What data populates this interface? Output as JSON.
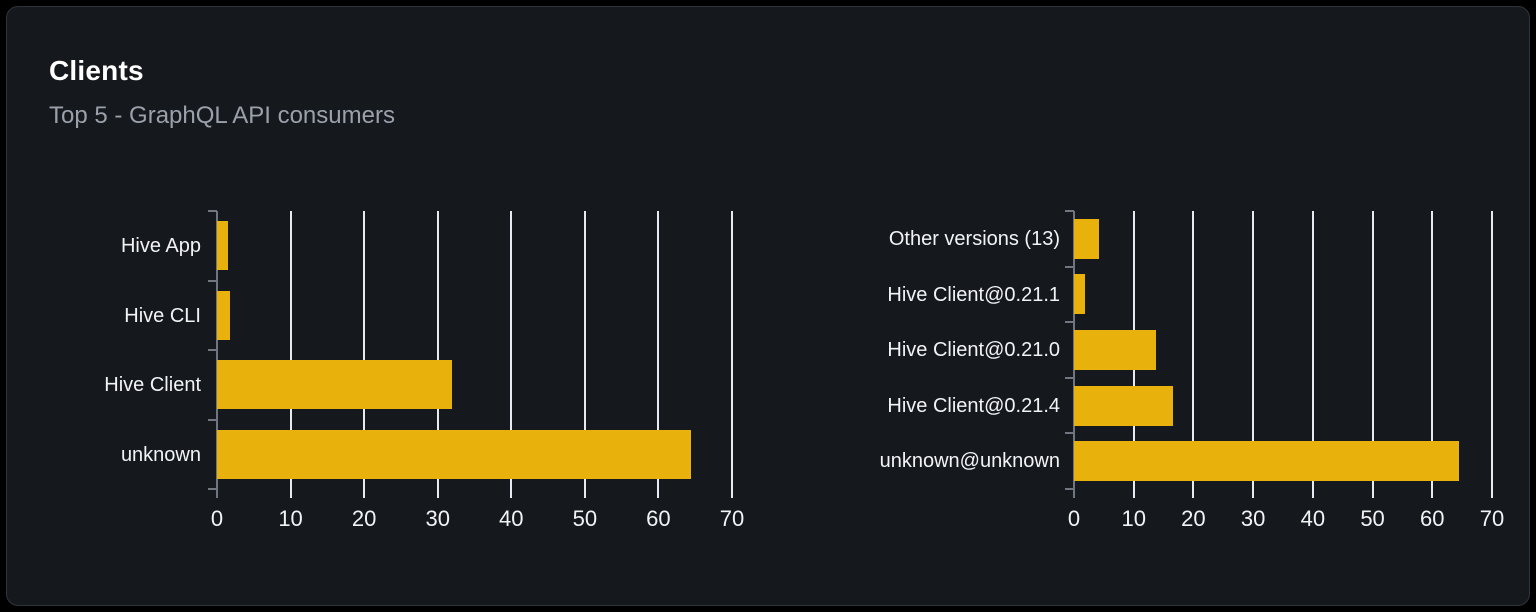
{
  "card": {
    "title": "Clients",
    "subtitle": "Top 5 - GraphQL API consumers"
  },
  "colors": {
    "bar": "#e9b10c",
    "card_background": "#15181c",
    "card_border": "#2f343a",
    "gridline": "#e6eaf2",
    "axis": "#6f7680",
    "title_text": "#ffffff",
    "subtitle_text": "#9aa1ab",
    "label_text": "#f2f3f5"
  },
  "chart_data": [
    {
      "type": "bar",
      "orientation": "horizontal",
      "title": "",
      "categories": [
        "Hive App",
        "Hive CLI",
        "Hive Client",
        "unknown"
      ],
      "values": [
        1.5,
        1.8,
        32,
        64.4
      ],
      "xlabel": "",
      "ylabel": "",
      "xlim": [
        0,
        70
      ],
      "xticks": [
        0,
        10,
        20,
        30,
        40,
        50,
        60,
        70
      ],
      "grid": true,
      "legend": false
    },
    {
      "type": "bar",
      "orientation": "horizontal",
      "title": "",
      "categories": [
        "Other versions (13)",
        "Hive Client@0.21.1",
        "Hive Client@0.21.0",
        "Hive Client@0.21.4",
        "unknown@unknown"
      ],
      "values": [
        4.2,
        1.8,
        13.8,
        16.6,
        64.4
      ],
      "xlabel": "",
      "ylabel": "",
      "xlim": [
        0,
        70
      ],
      "xticks": [
        0,
        10,
        20,
        30,
        40,
        50,
        60,
        70
      ],
      "grid": true,
      "legend": false
    }
  ]
}
